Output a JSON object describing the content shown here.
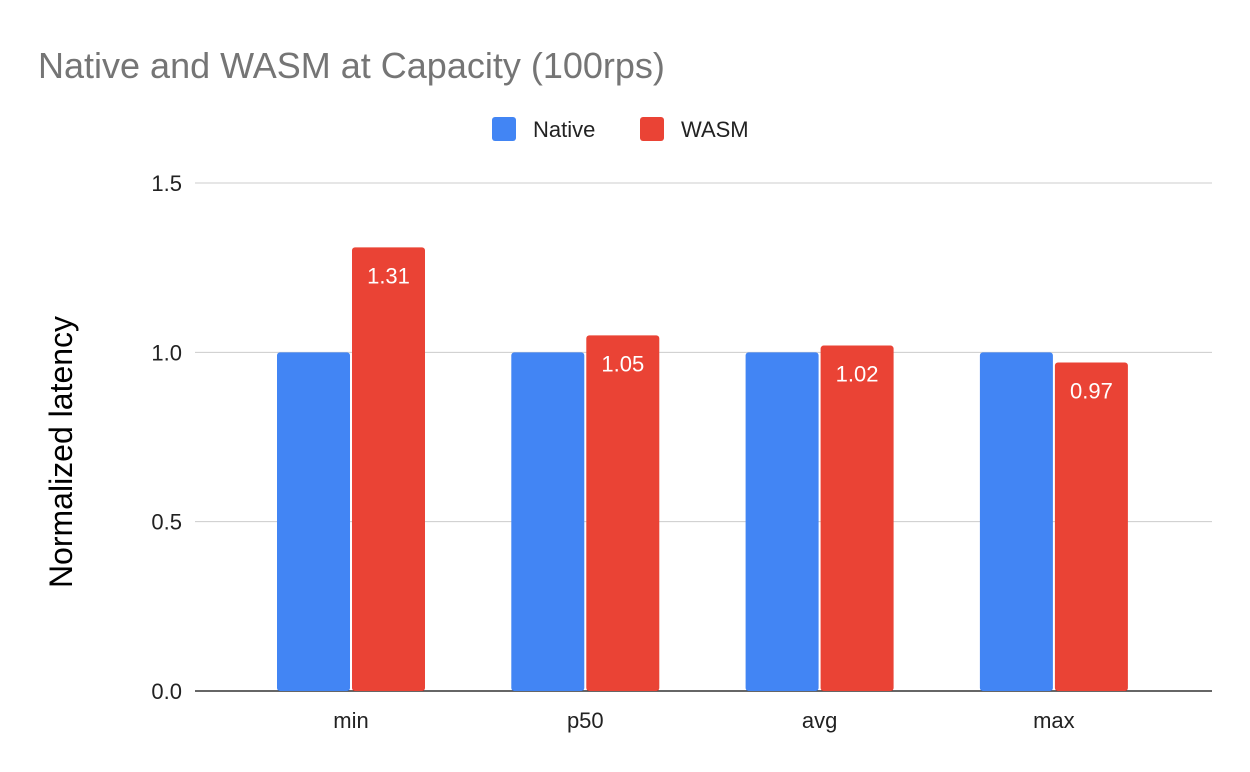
{
  "chart_data": {
    "type": "bar",
    "title": "Native and WASM at Capacity (100rps)",
    "xlabel": "",
    "ylabel": "Normalized latency",
    "categories": [
      "min",
      "p50",
      "avg",
      "max"
    ],
    "series": [
      {
        "name": "Native",
        "color": "#4285f4",
        "values": [
          1.0,
          1.0,
          1.0,
          1.0
        ],
        "labels": [
          "",
          "",
          "",
          ""
        ]
      },
      {
        "name": "WASM",
        "color": "#ea4335",
        "values": [
          1.31,
          1.05,
          1.02,
          0.97
        ],
        "labels": [
          "1.31",
          "1.05",
          "1.02",
          "0.97"
        ]
      }
    ],
    "ylim": [
      0,
      1.5
    ],
    "yticks": [
      "0.0",
      "0.5",
      "1.0",
      "1.5"
    ],
    "grid": true,
    "legend": "top-center"
  }
}
